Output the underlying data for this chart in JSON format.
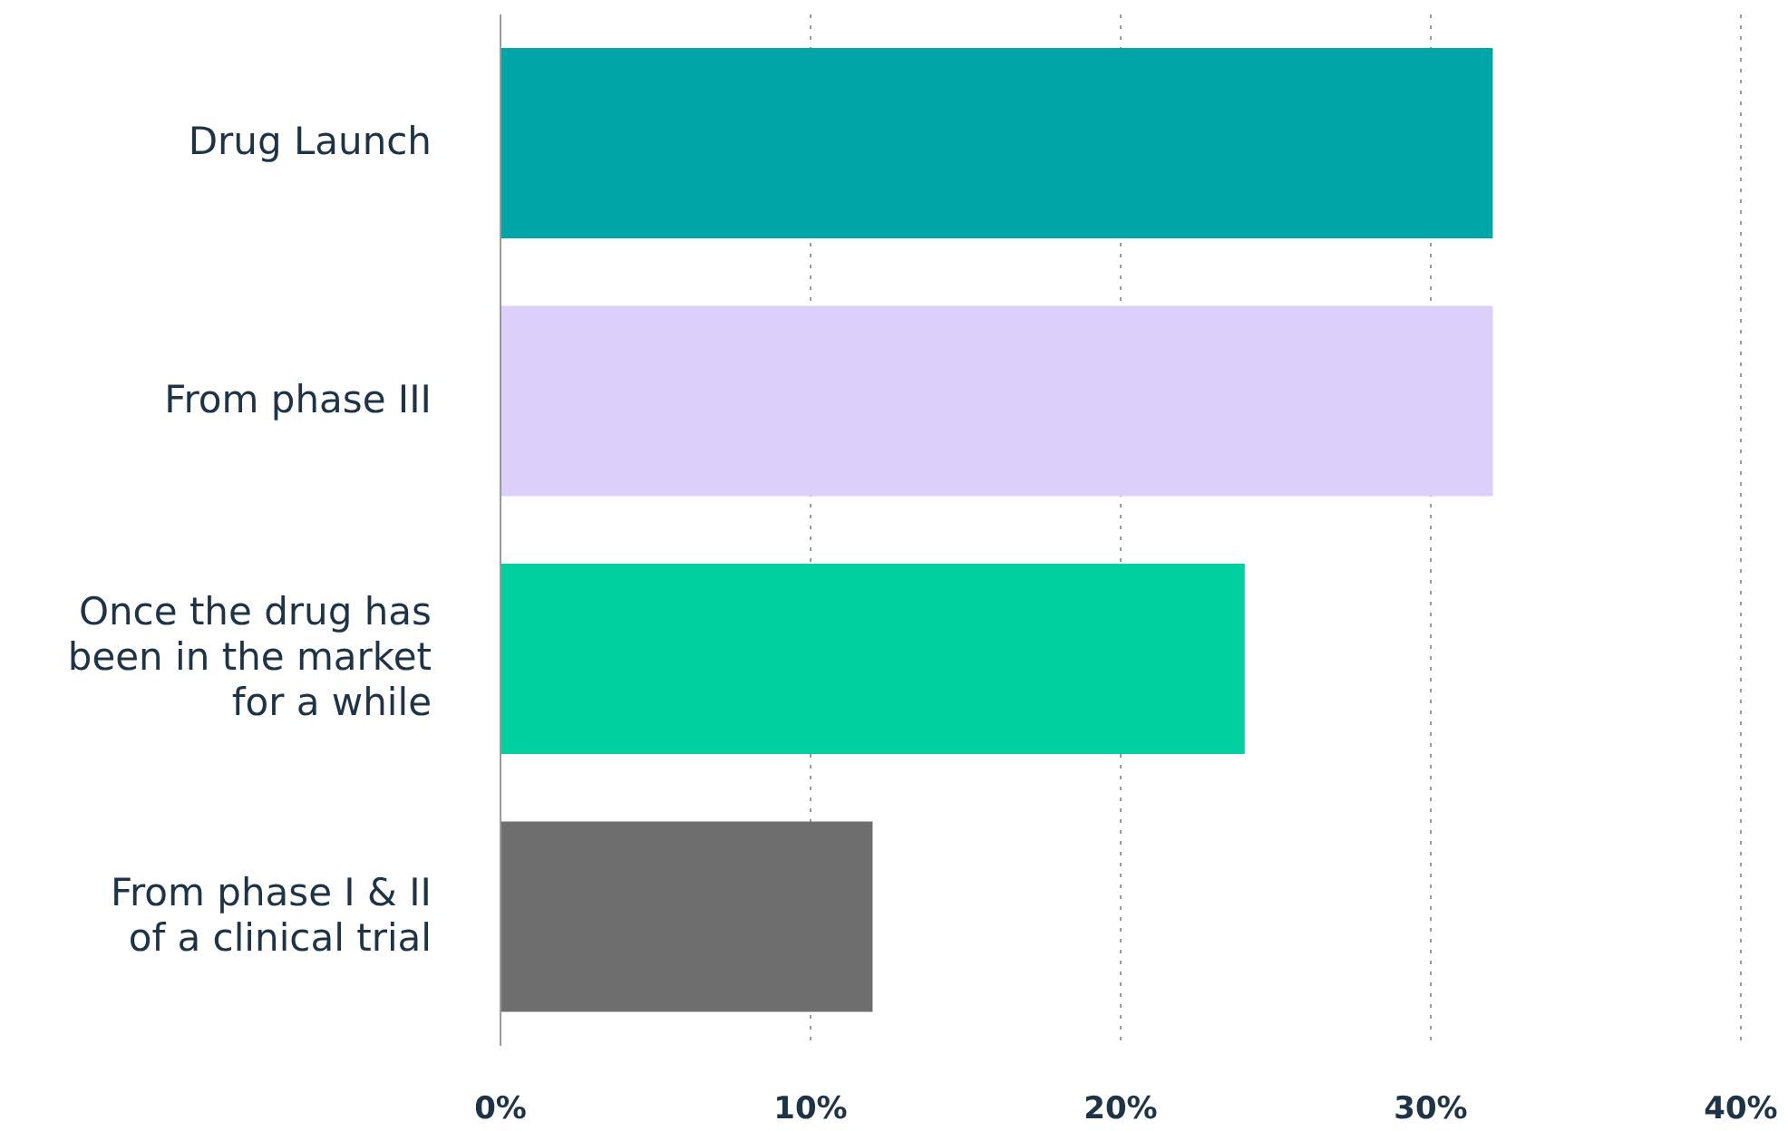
{
  "chart_data": {
    "type": "bar",
    "orientation": "horizontal",
    "categories": [
      "Drug Launch",
      "From phase III",
      "Once the drug has been in the market for a while",
      "From phase I & II of a clinical trial"
    ],
    "values": [
      32,
      32,
      24,
      12
    ],
    "colors": [
      "#00a5a8",
      "#dccffa",
      "#00d09f",
      "#6e6e6e"
    ],
    "xlim": [
      0,
      40
    ],
    "xticks": [
      {
        "value": 0,
        "label": "0%"
      },
      {
        "value": 10,
        "label": "10%"
      },
      {
        "value": 20,
        "label": "20%"
      },
      {
        "value": 30,
        "label": "30%"
      },
      {
        "value": 40,
        "label": "40%"
      }
    ],
    "grid": "x"
  }
}
